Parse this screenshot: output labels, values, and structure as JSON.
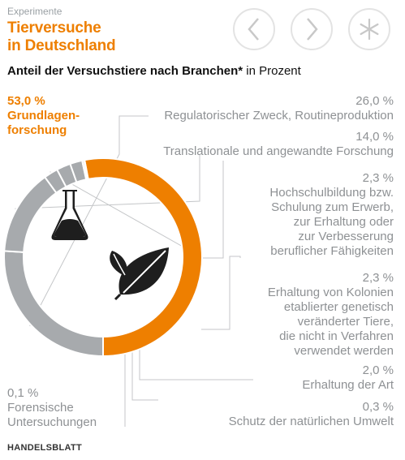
{
  "header": {
    "kicker": "Experimente",
    "title_line1": "Tierversuche",
    "title_line2": "in Deutschland"
  },
  "nav": {
    "prev_icon": "chevron-left-icon",
    "next_icon": "chevron-right-icon",
    "menu_icon": "asterisk-icon"
  },
  "subtitle": {
    "bold": "Anteil der Versuchstiere nach Branchen*",
    "rest": " in Prozent"
  },
  "colors": {
    "accent": "#ee7f00",
    "segment": "#a7aaad",
    "separator": "#ffffff"
  },
  "icons": {
    "center_top": "flask-icon",
    "center_bottom": "leaves-icon"
  },
  "labels": {
    "main_value": "53,0 %",
    "main_line1": "Grundlagen-",
    "main_line2": "forschung",
    "l1_value": "26,0 %",
    "l1_text": "Regulatorischer Zweck, Routineproduktion",
    "l2_value": "14,0 %",
    "l2_text": "Translationale und angewandte Forschung",
    "l3_value": "2,3 %",
    "l3_line1": "Hochschulbildung bzw.",
    "l3_line2": "Schulung zum Erwerb,",
    "l3_line3": "zur Erhaltung oder",
    "l3_line4": "zur Verbesserung",
    "l3_line5": "beruflicher Fähigkeiten",
    "l4_value": "2,3 %",
    "l4_line1": "Erhaltung von Kolonien",
    "l4_line2": "etablierter genetisch",
    "l4_line3": "veränderter Tiere,",
    "l4_line4": "die nicht in Verfahren",
    "l4_line5": "verwendet werden",
    "l5_value": "2,0 %",
    "l5_text": "Erhaltung der Art",
    "l6_value": "0,3 %",
    "l6_text": "Schutz der natürlichen Umwelt",
    "l7_value": "0,1 %",
    "l7_line1": "Forensische",
    "l7_line2": "Untersuchungen"
  },
  "footer": {
    "brand": "HANDELSBLATT"
  },
  "chart_data": {
    "type": "pie",
    "title": "Anteil der Versuchstiere nach Branchen*",
    "unit": "in Prozent",
    "categories": [
      "Grundlagenforschung",
      "Regulatorischer Zweck, Routineproduktion",
      "Translationale und angewandte Forschung",
      "Hochschulbildung bzw. Schulung zum Erwerb, zur Erhaltung oder zur Verbesserung beruflicher Fähigkeiten",
      "Erhaltung von Kolonien etablierter genetisch veränderter Tiere, die nicht in Verfahren verwendet werden",
      "Erhaltung der Art",
      "Schutz der natürlichen Umwelt",
      "Forensische Untersuchungen"
    ],
    "values": [
      53.0,
      26.0,
      14.0,
      2.3,
      2.3,
      2.0,
      0.3,
      0.1
    ],
    "highlight": "Grundlagenforschung"
  }
}
